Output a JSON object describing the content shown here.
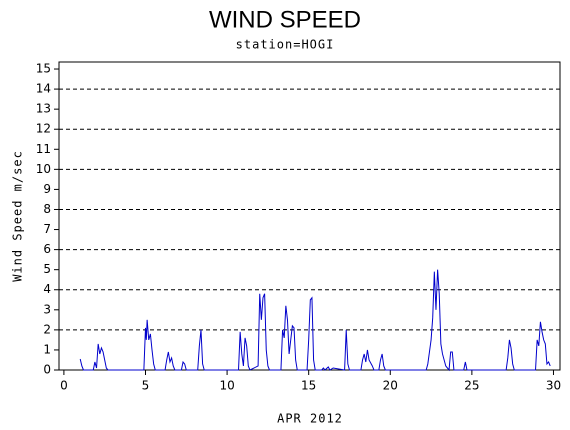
{
  "chart_data": {
    "type": "line",
    "title": "WIND SPEED",
    "subtitle": "station=HOGI",
    "y_label": "Wind Speed m/sec",
    "x_label": "APR 2012",
    "color": "#0000cc",
    "xlim": [
      -0.3,
      30.4
    ],
    "ylim": [
      0,
      15.35
    ],
    "xticks": [
      0,
      5,
      10,
      15,
      20,
      25,
      30
    ],
    "yticks": [
      0,
      1,
      2,
      3,
      4,
      5,
      6,
      7,
      8,
      9,
      10,
      11,
      12,
      13,
      14,
      15
    ],
    "grid_values": [
      2,
      4,
      6,
      8,
      10,
      12,
      14
    ],
    "x": [
      1.0,
      1.1,
      1.2,
      1.8,
      1.9,
      2.0,
      2.1,
      2.2,
      2.3,
      2.4,
      2.5,
      2.6,
      2.7,
      4.9,
      5.0,
      5.05,
      5.1,
      5.2,
      5.3,
      5.4,
      5.5,
      5.6,
      6.2,
      6.3,
      6.4,
      6.5,
      6.6,
      6.7,
      6.8,
      7.2,
      7.3,
      7.4,
      7.5,
      8.2,
      8.3,
      8.4,
      8.5,
      8.6,
      10.7,
      10.8,
      10.9,
      11.0,
      11.1,
      11.2,
      11.3,
      11.4,
      11.9,
      12.0,
      12.1,
      12.2,
      12.3,
      12.4,
      12.5,
      12.6,
      13.3,
      13.4,
      13.5,
      13.6,
      13.7,
      13.8,
      13.9,
      14.0,
      14.1,
      14.2,
      14.3,
      14.9,
      15.0,
      15.1,
      15.2,
      15.3,
      15.4,
      15.8,
      15.9,
      16.0,
      16.2,
      16.3,
      16.5,
      17.2,
      17.3,
      17.4,
      17.5,
      18.2,
      18.3,
      18.4,
      18.5,
      18.6,
      18.7,
      18.9,
      19.0,
      19.3,
      19.4,
      19.5,
      19.6,
      19.7,
      22.2,
      22.3,
      22.5,
      22.6,
      22.7,
      22.8,
      22.9,
      23.0,
      23.1,
      23.2,
      23.4,
      23.6,
      23.7,
      23.8,
      23.9,
      24.5,
      24.6,
      24.7,
      27.1,
      27.2,
      27.3,
      27.4,
      27.5,
      27.6,
      28.9,
      29.0,
      29.1,
      29.2,
      29.3,
      29.4,
      29.5,
      29.6,
      29.7,
      29.8
    ],
    "values": [
      0.55,
      0.2,
      0,
      0,
      0.4,
      0.1,
      1.3,
      0.8,
      1.1,
      0.9,
      0.5,
      0.1,
      0,
      0,
      2.1,
      1.5,
      2.5,
      1.5,
      1.8,
      1.0,
      0.3,
      0,
      0,
      0.5,
      0.9,
      0.4,
      0.6,
      0.2,
      0,
      0,
      0.4,
      0.3,
      0,
      0,
      1.2,
      2.0,
      0.3,
      0,
      0,
      1.9,
      0.8,
      0.2,
      1.6,
      1.2,
      0.2,
      0,
      0.2,
      3.8,
      2.5,
      3.6,
      3.8,
      1.0,
      0.2,
      0,
      0,
      2.0,
      1.6,
      3.2,
      2.5,
      0.8,
      1.5,
      2.2,
      2.1,
      0.5,
      0,
      0,
      1.5,
      3.5,
      3.6,
      0.5,
      0,
      0,
      0.1,
      0,
      0.15,
      0,
      0.1,
      0,
      2.0,
      0.3,
      0,
      0,
      0.5,
      0.8,
      0.4,
      1.0,
      0.5,
      0.2,
      0,
      0,
      0.5,
      0.8,
      0.2,
      0,
      0,
      0.3,
      1.5,
      2.6,
      4.9,
      3.0,
      5.0,
      3.8,
      1.3,
      0.8,
      0.2,
      0,
      0.9,
      0.9,
      0,
      0,
      0.4,
      0,
      0,
      0.6,
      1.5,
      1.1,
      0.3,
      0,
      0,
      1.5,
      1.2,
      2.4,
      1.9,
      1.5,
      1.3,
      0.3,
      0.4,
      0.2
    ]
  }
}
